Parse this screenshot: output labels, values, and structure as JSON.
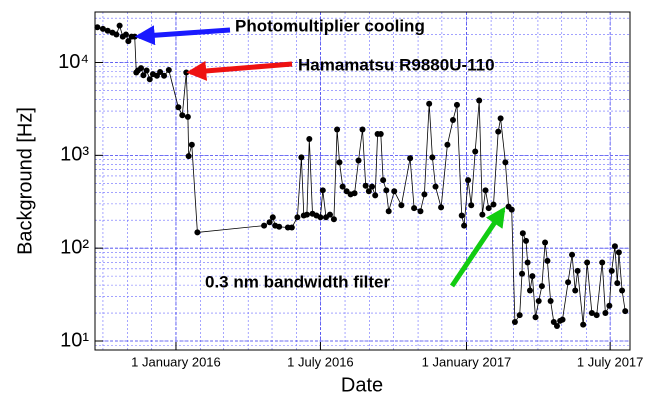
{
  "chart_data": {
    "type": "line",
    "ylabel": "Background [Hz]",
    "xlabel": "Date",
    "log_y": true,
    "grid": true,
    "minor_grid": true,
    "xlim": [
      "2015-09-21",
      "2017-07-26"
    ],
    "ylim": [
      8,
      35000
    ],
    "xticks": [
      {
        "value": "2016-01-01",
        "label": "1 January 2016"
      },
      {
        "value": "2016-07-01",
        "label": "1 July 2016"
      },
      {
        "value": "2017-01-01",
        "label": "1 January 2017"
      },
      {
        "value": "2017-07-01",
        "label": "1 July 2017"
      }
    ],
    "yticks": [
      {
        "value": 10,
        "label": "10¹"
      },
      {
        "value": 100,
        "label": "10²"
      },
      {
        "value": 1000,
        "label": "10³"
      },
      {
        "value": 10000,
        "label": "10⁴"
      }
    ],
    "series": [
      {
        "color": "#000000",
        "x": [
          "2015-09-24",
          "2015-10-01",
          "2015-10-07",
          "2015-10-13",
          "2015-10-18",
          "2015-10-22",
          "2015-10-26",
          "2015-10-30",
          "2015-11-02",
          "2015-11-06",
          "2015-11-10",
          "2015-11-12",
          "2015-11-14",
          "2015-11-18",
          "2015-11-21",
          "2015-11-25",
          "2015-11-29",
          "2015-12-03",
          "2015-12-08",
          "2015-12-12",
          "2015-12-17",
          "2015-12-23",
          "2016-01-04",
          "2016-01-09",
          "2016-01-14",
          "2016-01-16",
          "2016-01-17",
          "2016-01-21",
          "2016-01-28",
          "2016-04-21",
          "2016-04-28",
          "2016-05-02",
          "2016-05-05",
          "2016-05-10",
          "2016-05-21",
          "2016-05-26",
          "2016-06-02",
          "2016-06-07",
          "2016-06-10",
          "2016-06-14",
          "2016-06-17",
          "2016-06-21",
          "2016-06-26",
          "2016-07-01",
          "2016-07-04",
          "2016-07-08",
          "2016-07-13",
          "2016-07-18",
          "2016-07-22",
          "2016-07-25",
          "2016-07-29",
          "2016-08-03",
          "2016-08-08",
          "2016-08-13",
          "2016-08-18",
          "2016-08-23",
          "2016-08-27",
          "2016-08-31",
          "2016-09-04",
          "2016-09-08",
          "2016-09-11",
          "2016-09-15",
          "2016-09-18",
          "2016-09-22",
          "2016-09-25",
          "2016-10-02",
          "2016-10-11",
          "2016-10-22",
          "2016-10-27",
          "2016-11-04",
          "2016-11-09",
          "2016-11-15",
          "2016-11-19",
          "2016-11-23",
          "2016-11-30",
          "2016-12-08",
          "2016-12-15",
          "2016-12-20",
          "2016-12-26",
          "2016-12-29",
          "2017-01-03",
          "2017-01-07",
          "2017-01-12",
          "2017-01-17",
          "2017-01-21",
          "2017-01-25",
          "2017-01-29",
          "2017-02-04",
          "2017-02-10",
          "2017-02-13",
          "2017-02-19",
          "2017-02-23",
          "2017-02-27",
          "2017-03-03",
          "2017-03-09",
          "2017-03-12",
          "2017-03-13",
          "2017-03-17",
          "2017-03-19",
          "2017-03-22",
          "2017-03-25",
          "2017-03-29",
          "2017-04-02",
          "2017-04-06",
          "2017-04-10",
          "2017-04-13",
          "2017-04-17",
          "2017-04-21",
          "2017-04-25",
          "2017-04-29",
          "2017-05-02",
          "2017-05-09",
          "2017-05-14",
          "2017-05-18",
          "2017-05-21",
          "2017-05-28",
          "2017-06-02",
          "2017-06-08",
          "2017-06-14",
          "2017-06-21",
          "2017-06-25",
          "2017-06-30",
          "2017-07-03",
          "2017-07-07",
          "2017-07-10",
          "2017-07-12",
          "2017-07-16",
          "2017-07-20"
        ],
        "values": [
          24000,
          23000,
          22000,
          21000,
          20000,
          25000,
          19000,
          20000,
          17000,
          19000,
          19000,
          7800,
          8200,
          8700,
          7300,
          8200,
          6600,
          7500,
          7200,
          7900,
          7200,
          8300,
          3300,
          2700,
          7800,
          2600,
          980,
          1300,
          148,
          175,
          190,
          215,
          175,
          170,
          167,
          167,
          215,
          950,
          225,
          230,
          1500,
          235,
          225,
          215,
          420,
          215,
          230,
          205,
          1900,
          840,
          460,
          410,
          380,
          390,
          880,
          1900,
          470,
          410,
          460,
          370,
          1700,
          1700,
          540,
          420,
          250,
          410,
          290,
          930,
          270,
          250,
          380,
          3600,
          950,
          460,
          275,
          1300,
          2400,
          3500,
          225,
          175,
          540,
          290,
          1100,
          3900,
          230,
          420,
          270,
          295,
          1800,
          2500,
          840,
          280,
          260,
          16,
          19,
          53,
          145,
          120,
          70,
          35,
          50,
          18,
          27,
          39,
          115,
          73,
          27,
          16,
          14.5,
          16.5,
          17,
          43,
          85,
          35,
          57,
          15,
          70,
          20,
          19,
          70,
          20,
          24,
          57,
          105,
          42,
          90,
          35,
          21
        ]
      }
    ],
    "annotations": [
      {
        "text": "Photomultiplier cooling",
        "color": "#1a1aff",
        "x": "2015-11-10",
        "y": 19000
      },
      {
        "text": "Hamamatsu R9880U-110",
        "color": "#ee1111",
        "x": "2016-01-14",
        "y": 7800
      },
      {
        "text": "0.3 nm bandwidth filter",
        "color": "#11cc11",
        "x": "2017-02-19",
        "y": 280
      }
    ]
  }
}
